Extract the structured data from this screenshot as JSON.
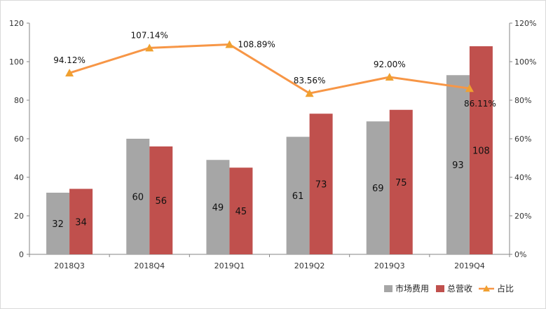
{
  "chart_data": {
    "type": "bar",
    "categories": [
      "2018Q3",
      "2018Q4",
      "2019Q1",
      "2019Q2",
      "2019Q3",
      "2019Q4"
    ],
    "series": [
      {
        "name": "市场费用",
        "type": "bar",
        "axis": "left",
        "color": "#A6A6A6",
        "values": [
          32,
          60,
          49,
          61,
          69,
          93
        ],
        "labels": [
          "32",
          "60",
          "49",
          "61",
          "69",
          "93"
        ]
      },
      {
        "name": "总营收",
        "type": "bar",
        "axis": "left",
        "color": "#C0504D",
        "values": [
          34,
          56,
          45,
          73,
          75,
          108
        ],
        "labels": [
          "34",
          "56",
          "45",
          "73",
          "75",
          "108"
        ]
      },
      {
        "name": "占比",
        "type": "line",
        "axis": "right",
        "color": "#F79646",
        "marker": "triangle",
        "values": [
          94.12,
          107.14,
          108.89,
          83.56,
          92.0,
          86.11
        ],
        "labels": [
          "94.12%",
          "107.14%",
          "108.89%",
          "83.56%",
          "92.00%",
          "86.11%"
        ]
      }
    ],
    "y_left": {
      "min": 0,
      "max": 120,
      "ticks": [
        "0",
        "20",
        "40",
        "60",
        "80",
        "100",
        "120"
      ]
    },
    "y_right": {
      "min": 0,
      "max": 120,
      "unit": "%",
      "ticks": [
        "0%",
        "20%",
        "40%",
        "60%",
        "80%",
        "100%",
        "120%"
      ]
    },
    "grid": false,
    "legend_position": "bottom-right"
  }
}
